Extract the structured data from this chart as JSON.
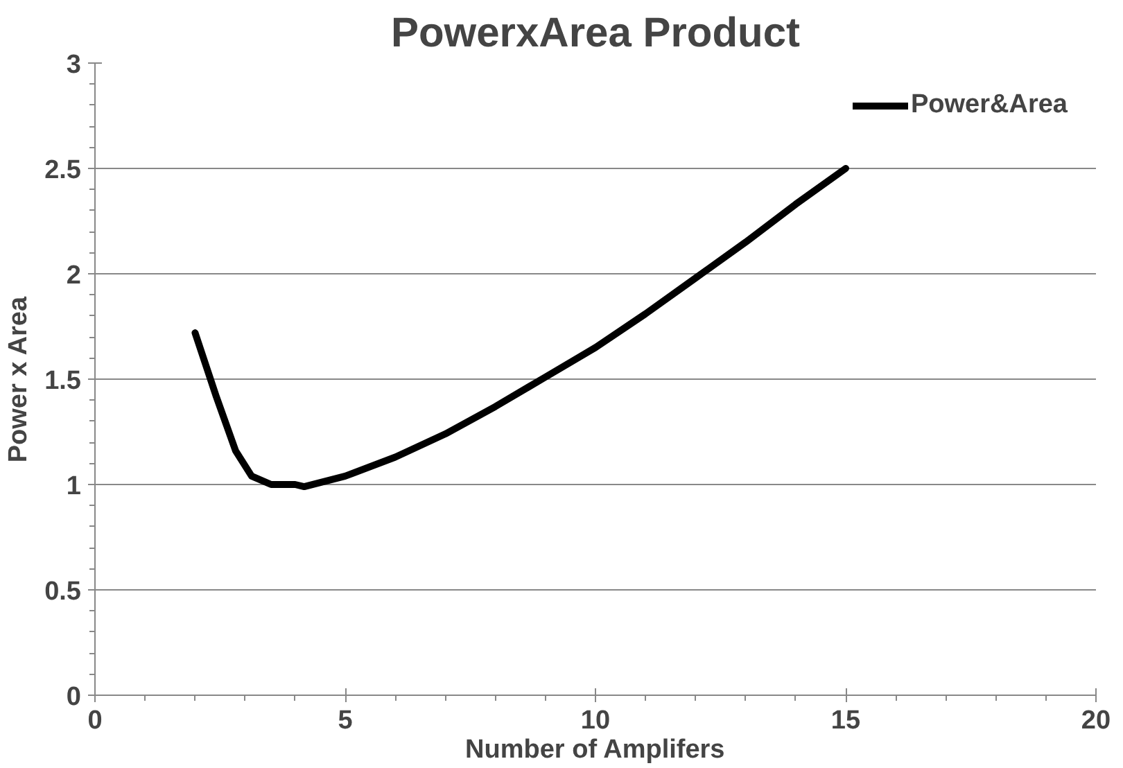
{
  "chart_data": {
    "type": "line",
    "title": "PowerxArea Product",
    "xlabel": "Number of Amplifers",
    "ylabel": "Power x Area",
    "x": [
      2,
      2.42,
      2.81,
      3.13,
      3.52,
      4.0,
      4.18,
      5,
      6,
      7,
      8,
      9,
      10,
      11,
      12,
      13,
      14,
      15
    ],
    "series": [
      {
        "name": "Power&Area",
        "color": "#000000",
        "values": [
          1.72,
          1.42,
          1.16,
          1.04,
          1.0,
          1.0,
          0.99,
          1.04,
          1.13,
          1.24,
          1.37,
          1.51,
          1.65,
          1.81,
          1.98,
          2.15,
          2.33,
          2.5
        ]
      }
    ],
    "xlim": [
      0,
      20
    ],
    "ylim": [
      0,
      3
    ],
    "xticks": [
      0,
      5,
      10,
      15,
      20
    ],
    "yticks": [
      0,
      0.5,
      1,
      1.5,
      2,
      2.5,
      3
    ],
    "grid": "y",
    "legend": "top right",
    "marker": "none",
    "line_style": "solid"
  }
}
